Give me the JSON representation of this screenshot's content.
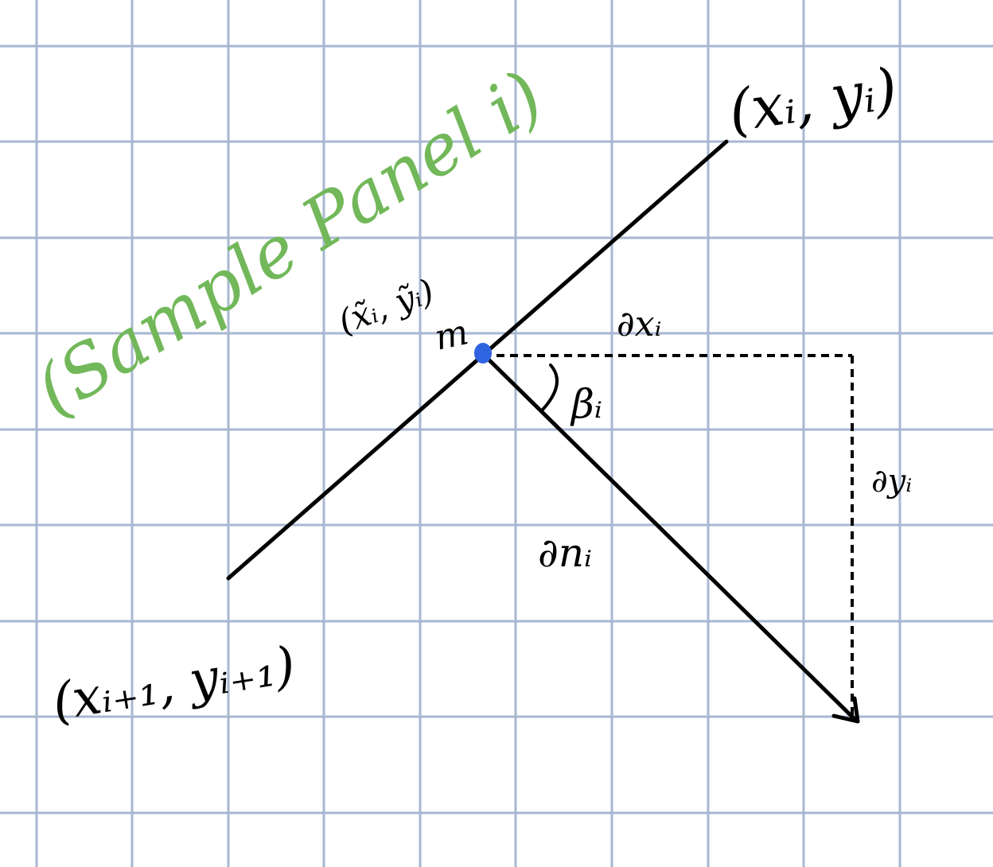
{
  "colors": {
    "grid": "#a8b7d1",
    "ink": "#000000",
    "accent_green": "#72b85a",
    "point_blue": "#2f63e0"
  },
  "labels": {
    "panel_title": "(Sample Panel i)",
    "start_point": "(xᵢ, yᵢ)",
    "end_point": "(xᵢ₊₁, yᵢ₊₁)",
    "control_point": "(x̃ᵢ, ỹᵢ)",
    "midpoint": "m",
    "dx": "∂xᵢ",
    "dy": "∂yᵢ",
    "dn": "∂nᵢ",
    "angle": "βᵢ"
  },
  "icons": {
    "control_point_marker": "dot-icon",
    "normal_arrow_head": "arrowhead-icon"
  }
}
